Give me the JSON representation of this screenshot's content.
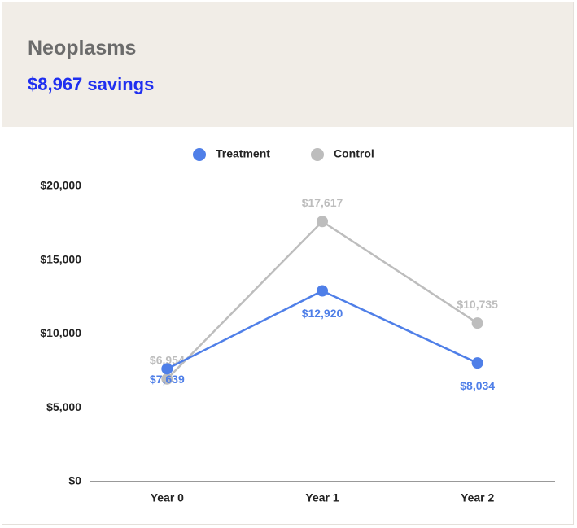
{
  "header": {
    "title": "Neoplasms",
    "subtitle": "$8,967 savings"
  },
  "chart_data": {
    "type": "line",
    "categories": [
      "Year 0",
      "Year 1",
      "Year 2"
    ],
    "series": [
      {
        "name": "Treatment",
        "color": "#4f7fe8",
        "values": [
          7639,
          12920,
          8034
        ],
        "value_labels": [
          "$7,639",
          "$12,920",
          "$8,034"
        ]
      },
      {
        "name": "Control",
        "color": "#bdbdbd",
        "values": [
          6954,
          17617,
          10735
        ],
        "value_labels": [
          "$6,954",
          "$17,617",
          "$10,735"
        ]
      }
    ],
    "ylim": [
      0,
      20000
    ],
    "yticks": [
      {
        "value": 0,
        "label": "$0"
      },
      {
        "value": 5000,
        "label": "$5,000"
      },
      {
        "value": 10000,
        "label": "$10,000"
      },
      {
        "value": 15000,
        "label": "$15,000"
      },
      {
        "value": 20000,
        "label": "$20,000"
      }
    ],
    "grid": false,
    "legend": "top"
  }
}
